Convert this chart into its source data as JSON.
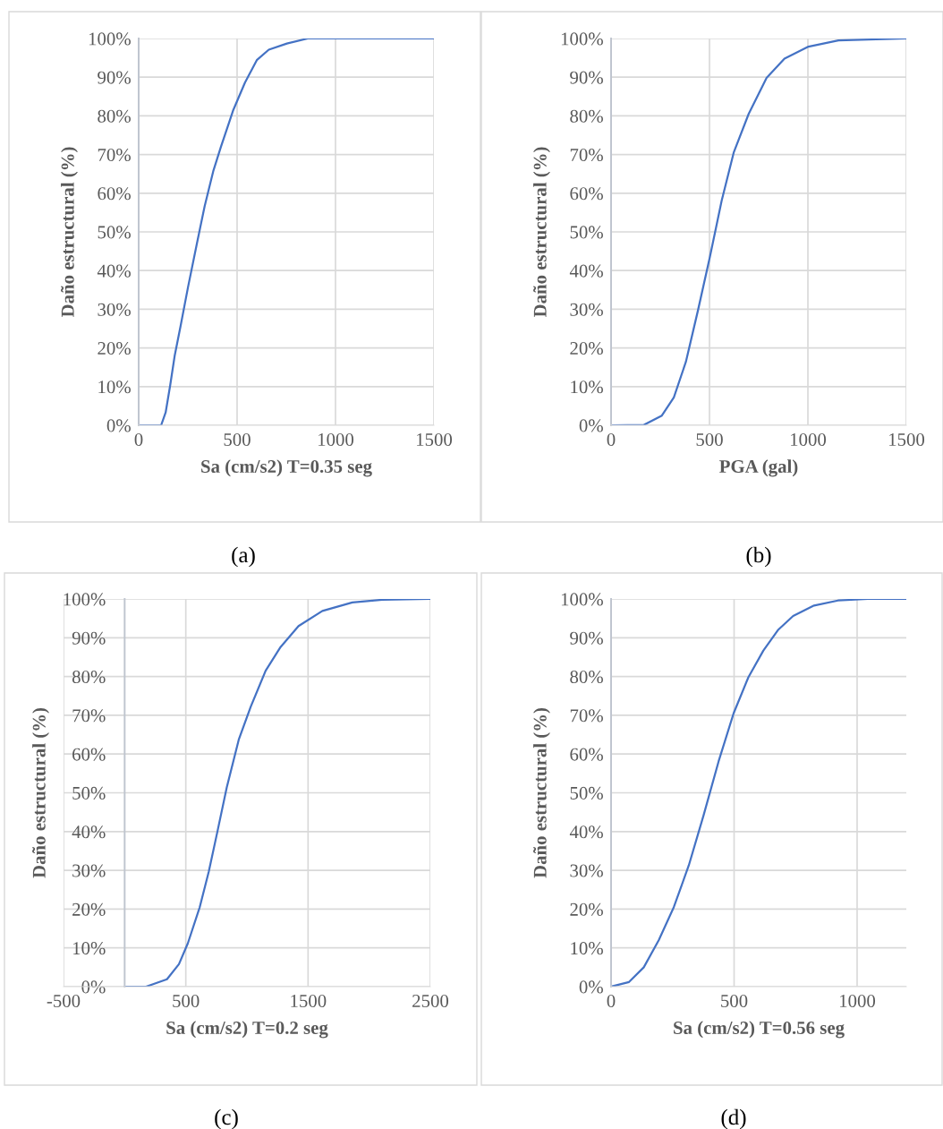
{
  "chart_data": [
    {
      "type": "line",
      "xlabel": "Sa (cm/s2) T=0.35 seg",
      "ylabel": "Daño estructural (%)",
      "annotations": [
        "(a)"
      ],
      "grid": true,
      "legend": false,
      "marker": "none",
      "line_style": "solid",
      "xlim": [
        0,
        1500
      ],
      "xticks": [
        0,
        500,
        1000,
        1500
      ],
      "ylim": [
        0,
        100
      ],
      "yticks": [
        {
          "value": 0,
          "label": "0%"
        },
        {
          "value": 10,
          "label": "10%"
        },
        {
          "value": 20,
          "label": "20%"
        },
        {
          "value": 30,
          "label": "30%"
        },
        {
          "value": 40,
          "label": "40%"
        },
        {
          "value": 50,
          "label": "50%"
        },
        {
          "value": 60,
          "label": "60%"
        },
        {
          "value": 70,
          "label": "70%"
        },
        {
          "value": 80,
          "label": "80%"
        },
        {
          "value": 90,
          "label": "90%"
        },
        {
          "value": 100,
          "label": "100%"
        }
      ],
      "series": [
        {
          "color": "#4472c4",
          "x": [
            0,
            114,
            137,
            160,
            183,
            213,
            251,
            297,
            335,
            380,
            418,
            479,
            540,
            600,
            661,
            753,
            859,
            1500
          ],
          "values": [
            0,
            0,
            3.3,
            10.3,
            18,
            25.7,
            35.8,
            47.3,
            56.6,
            65.9,
            72,
            81.3,
            88.6,
            94.4,
            97.1,
            98.7,
            100,
            100
          ]
        }
      ]
    },
    {
      "type": "line",
      "xlabel": "PGA (gal)",
      "ylabel": "Daño estructural (%)",
      "annotations": [
        "(b)"
      ],
      "grid": true,
      "legend": false,
      "marker": "none",
      "line_style": "solid",
      "xlim": [
        0,
        1500
      ],
      "xticks": [
        0,
        500,
        1000,
        1500
      ],
      "ylim": [
        0,
        100
      ],
      "yticks": [
        {
          "value": 0,
          "label": "0%"
        },
        {
          "value": 10,
          "label": "10%"
        },
        {
          "value": 20,
          "label": "20%"
        },
        {
          "value": 30,
          "label": "30%"
        },
        {
          "value": 40,
          "label": "40%"
        },
        {
          "value": 50,
          "label": "50%"
        },
        {
          "value": 60,
          "label": "60%"
        },
        {
          "value": 70,
          "label": "70%"
        },
        {
          "value": 80,
          "label": "80%"
        },
        {
          "value": 90,
          "label": "90%"
        },
        {
          "value": 100,
          "label": "100%"
        }
      ],
      "series": [
        {
          "color": "#4472c4",
          "x": [
            0,
            167,
            258,
            319,
            380,
            441,
            502,
            562,
            623,
            699,
            790,
            881,
            1003,
            1155,
            1500
          ],
          "values": [
            0,
            0.1,
            2.5,
            7.2,
            16.4,
            29.6,
            43.5,
            58.1,
            70.5,
            80.5,
            89.8,
            94.8,
            97.9,
            99.5,
            100
          ]
        }
      ]
    },
    {
      "type": "line",
      "xlabel": "Sa (cm/s2) T=0.2 seg",
      "ylabel": "Daño estructural (%)",
      "annotations": [
        "(c)"
      ],
      "grid": true,
      "legend": false,
      "marker": "none",
      "line_style": "solid",
      "xlim": [
        -500,
        2500
      ],
      "xticks": [
        -500,
        500,
        1500,
        2500
      ],
      "ylim": [
        0,
        100
      ],
      "yticks": [
        {
          "value": 0,
          "label": "0%"
        },
        {
          "value": 10,
          "label": "10%"
        },
        {
          "value": 20,
          "label": "20%"
        },
        {
          "value": 30,
          "label": "30%"
        },
        {
          "value": 40,
          "label": "40%"
        },
        {
          "value": 50,
          "label": "50%"
        },
        {
          "value": 60,
          "label": "60%"
        },
        {
          "value": 70,
          "label": "70%"
        },
        {
          "value": 80,
          "label": "80%"
        },
        {
          "value": 90,
          "label": "90%"
        },
        {
          "value": 100,
          "label": "100%"
        }
      ],
      "series": [
        {
          "color": "#4472c4",
          "x": [
            0,
            175,
            346,
            444,
            517,
            614,
            688,
            762,
            835,
            933,
            1031,
            1153,
            1275,
            1422,
            1617,
            1862,
            2106,
            2500
          ],
          "values": [
            0,
            0,
            1.9,
            5.8,
            11.2,
            20.5,
            29.7,
            40.5,
            51.4,
            63.7,
            72.2,
            81.5,
            87.6,
            93,
            96.9,
            99.1,
            99.8,
            100
          ]
        }
      ]
    },
    {
      "type": "line",
      "xlabel": "Sa (cm/s2) T=0.56 seg",
      "ylabel": "Daño estructural (%)",
      "annotations": [
        "(d)"
      ],
      "grid": true,
      "legend": false,
      "marker": "none",
      "line_style": "solid",
      "xlim": [
        0,
        1200
      ],
      "xticks": [
        0,
        500,
        1000
      ],
      "ylim": [
        0,
        100
      ],
      "yticks": [
        {
          "value": 0,
          "label": "0%"
        },
        {
          "value": 10,
          "label": "10%"
        },
        {
          "value": 20,
          "label": "20%"
        },
        {
          "value": 30,
          "label": "30%"
        },
        {
          "value": 40,
          "label": "40%"
        },
        {
          "value": 50,
          "label": "50%"
        },
        {
          "value": 60,
          "label": "60%"
        },
        {
          "value": 70,
          "label": "70%"
        },
        {
          "value": 80,
          "label": "80%"
        },
        {
          "value": 90,
          "label": "90%"
        },
        {
          "value": 100,
          "label": "100%"
        }
      ],
      "series": [
        {
          "color": "#4472c4",
          "x": [
            0,
            73,
            133,
            194,
            255,
            316,
            376,
            437,
            498,
            558,
            619,
            680,
            740,
            825,
            922,
            1044,
            1200
          ],
          "values": [
            0,
            1.2,
            5,
            12,
            20.5,
            31.3,
            44.2,
            58.1,
            70.5,
            79.8,
            86.7,
            92.1,
            95.6,
            98.3,
            99.6,
            100,
            100
          ]
        }
      ]
    }
  ]
}
